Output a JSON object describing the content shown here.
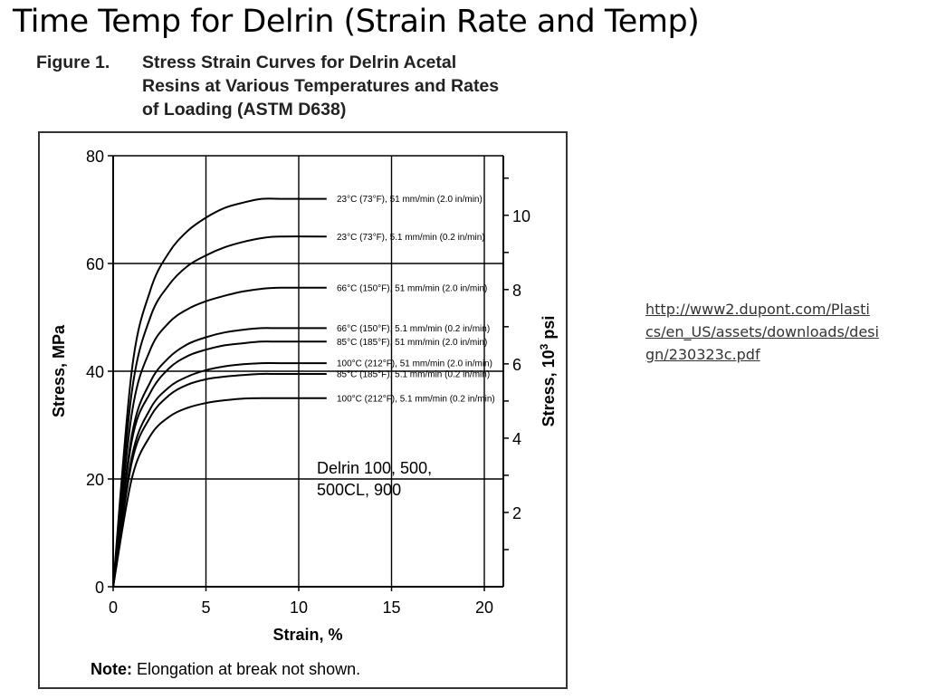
{
  "slide": {
    "title": "Time Temp for Delrin (Strain Rate and Temp)",
    "link_lines": [
      "http://www2.dupont.com/Plasti",
      "cs/en_US/assets/downloads/desi",
      "gn/230323c.pdf"
    ]
  },
  "figure": {
    "number": "Figure 1.",
    "caption_lines": [
      "Stress Strain Curves for Delrin Acetal",
      "Resins at Various Temperatures and Rates",
      "of Loading (ASTM D638)"
    ],
    "annotation_lines": [
      "Delrin 100, 500,",
      "500CL, 900"
    ],
    "note_label": "Note:",
    "note_text": " Elongation at break not shown."
  },
  "chart_data": {
    "type": "line",
    "xlabel": "Strain, %",
    "ylabel_left": "Stress, MPa",
    "ylabel_right_prefix": "Stress, 10",
    "ylabel_right_sup": "3",
    "ylabel_right_suffix": " psi",
    "xlim": [
      0,
      21
    ],
    "ylim": [
      0,
      80
    ],
    "x_ticks": [
      0,
      5,
      10,
      15,
      20
    ],
    "y_ticks": [
      0,
      20,
      40,
      60,
      80
    ],
    "right_ticks": [
      2,
      4,
      6,
      8,
      10
    ],
    "grid": true,
    "colors": {
      "line": "#000000",
      "grid": "#000000",
      "text": "#000000"
    },
    "series": [
      {
        "name": "23°C (73°F), 51 mm/min (2.0 in/min)",
        "plateau": 72,
        "x": [
          0,
          1,
          2,
          3,
          4,
          5,
          6,
          7,
          8,
          9,
          11.5
        ],
        "y": [
          0,
          40,
          55,
          62,
          66,
          68.5,
          70.3,
          71.3,
          72,
          72,
          72
        ]
      },
      {
        "name": "23°C (73°F), 5.1 mm/min (0.2 in/min)",
        "plateau": 65,
        "x": [
          0,
          1,
          2,
          3,
          4,
          5,
          6,
          7,
          8,
          9,
          11.5
        ],
        "y": [
          0,
          36,
          50,
          56,
          59.5,
          61.5,
          63,
          64,
          64.7,
          65,
          65
        ]
      },
      {
        "name": "66°C (150°F), 51 mm/min (2.0 in/min)",
        "plateau": 55.5,
        "x": [
          0,
          1,
          2,
          3,
          4,
          5,
          6,
          7,
          8,
          9,
          11.5
        ],
        "y": [
          0,
          32,
          44,
          49,
          51.5,
          53,
          54,
          54.8,
          55.3,
          55.5,
          55.5
        ]
      },
      {
        "name": "66°C (150°F), 5.1 mm/min (0.2 in/min)",
        "plateau": 48,
        "x": [
          0,
          1,
          2,
          3,
          4,
          5,
          6,
          7,
          8,
          9,
          11.5
        ],
        "y": [
          0,
          28,
          38,
          42.5,
          45,
          46.3,
          47.2,
          47.7,
          48,
          48,
          48
        ]
      },
      {
        "name": "85°C (185°F), 51 mm/min (2.0 in/min)",
        "plateau": 45.5,
        "x": [
          0,
          1,
          2,
          3,
          4,
          5,
          6,
          7,
          8,
          9,
          11.5
        ],
        "y": [
          0,
          27,
          36,
          40.5,
          42.8,
          44,
          44.8,
          45.2,
          45.5,
          45.5,
          45.5
        ]
      },
      {
        "name": "100°C (212°F), 51 mm/min (2.0 in/min)",
        "plateau": 41.5,
        "x": [
          0,
          1,
          2,
          3,
          4,
          5,
          6,
          7,
          8,
          9,
          11.5
        ],
        "y": [
          0,
          24,
          33,
          37,
          39,
          40.2,
          40.9,
          41.3,
          41.5,
          41.5,
          41.5
        ]
      },
      {
        "name": "85°C (185°F), 5.1 mm/min (0.2 in/min)",
        "plateau": 39.5,
        "x": [
          0,
          1,
          2,
          3,
          4,
          5,
          6,
          7,
          8,
          9,
          11.5
        ],
        "y": [
          0,
          23,
          31.5,
          35.5,
          37.5,
          38.5,
          39,
          39.3,
          39.5,
          39.5,
          39.5
        ]
      },
      {
        "name": "100°C (212°F), 5.1 mm/min (0.2 in/min)",
        "plateau": 35,
        "x": [
          0,
          1,
          2,
          3,
          4,
          5,
          6,
          7,
          8,
          9,
          11.5
        ],
        "y": [
          0,
          20,
          28,
          31.5,
          33.2,
          34.1,
          34.6,
          34.9,
          35,
          35,
          35
        ]
      }
    ]
  }
}
